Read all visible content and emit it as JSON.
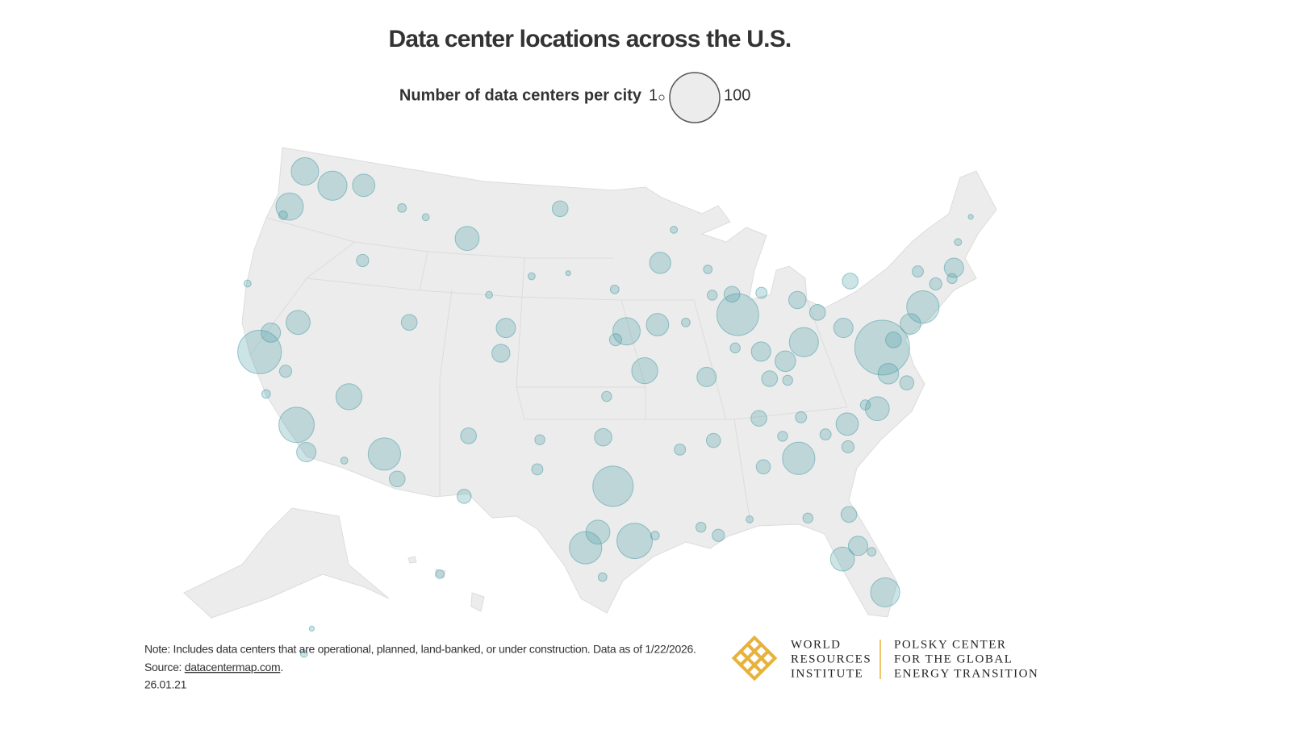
{
  "chart_data": {
    "type": "bubble_map",
    "title": "Data center locations across the U.S.",
    "size_legend": {
      "label": "Number of data centers per city",
      "min": 1,
      "max": 100
    },
    "color": "#4a9ea6",
    "points": [
      {
        "lon": -77.5,
        "lat": 39.0,
        "value": 120
      },
      {
        "lon": -96.8,
        "lat": 32.8,
        "value": 65
      },
      {
        "lon": -112.07,
        "lat": 33.45,
        "value": 42
      },
      {
        "lon": -87.6,
        "lat": 41.9,
        "value": 70
      },
      {
        "lon": -84.4,
        "lat": 33.75,
        "value": 42
      },
      {
        "lon": -121.9,
        "lat": 37.4,
        "value": 76
      },
      {
        "lon": -118.2,
        "lat": 34.05,
        "value": 50
      },
      {
        "lon": -74.0,
        "lat": 40.7,
        "value": 42
      },
      {
        "lon": -95.4,
        "lat": 29.8,
        "value": 50
      },
      {
        "lon": -98.5,
        "lat": 29.4,
        "value": 42
      },
      {
        "lon": -83.0,
        "lat": 40.0,
        "value": 34
      },
      {
        "lon": -122.3,
        "lat": 47.6,
        "value": 30
      },
      {
        "lon": -122.7,
        "lat": 45.5,
        "value": 30
      },
      {
        "lon": -119.85,
        "lat": 47.23,
        "value": 34
      },
      {
        "lon": -111.9,
        "lat": 40.76,
        "value": 10
      },
      {
        "lon": -104.99,
        "lat": 39.74,
        "value": 13
      },
      {
        "lon": -95.9,
        "lat": 41.26,
        "value": 30
      },
      {
        "lon": -93.6,
        "lat": 41.6,
        "value": 20
      },
      {
        "lon": -94.6,
        "lat": 39.1,
        "value": 27
      },
      {
        "lon": -93.27,
        "lat": 44.98,
        "value": 18
      },
      {
        "lon": -80.84,
        "lat": 35.23,
        "value": 20
      },
      {
        "lon": -71.06,
        "lat": 42.36,
        "value": 15
      },
      {
        "lon": -75.16,
        "lat": 39.95,
        "value": 17
      },
      {
        "lon": -119.8,
        "lat": 39.5,
        "value": 23
      },
      {
        "lon": -115.14,
        "lat": 36.17,
        "value": 27
      },
      {
        "lon": -121.5,
        "lat": 38.58,
        "value": 15
      },
      {
        "lon": -117.16,
        "lat": 32.72,
        "value": 15
      },
      {
        "lon": -80.19,
        "lat": 25.76,
        "value": 34
      },
      {
        "lon": -82.46,
        "lat": 27.95,
        "value": 23
      },
      {
        "lon": -81.38,
        "lat": 28.54,
        "value": 15
      },
      {
        "lon": -81.65,
        "lat": 30.33,
        "value": 10
      },
      {
        "lon": -86.78,
        "lat": 36.16,
        "value": 10
      },
      {
        "lon": -90.2,
        "lat": 38.63,
        "value": 15
      },
      {
        "lon": -86.16,
        "lat": 39.77,
        "value": 15
      },
      {
        "lon": -83.05,
        "lat": 42.33,
        "value": 12
      },
      {
        "lon": -80.0,
        "lat": 40.44,
        "value": 15
      },
      {
        "lon": -81.7,
        "lat": 41.5,
        "value": 10
      },
      {
        "lon": -78.9,
        "lat": 42.9,
        "value": 10
      },
      {
        "lon": -97.74,
        "lat": 30.27,
        "value": 23
      },
      {
        "lon": -97.5,
        "lat": 35.47,
        "value": 12
      },
      {
        "lon": -106.65,
        "lat": 35.08,
        "value": 10
      },
      {
        "lon": -106.49,
        "lat": 31.76,
        "value": 8
      },
      {
        "lon": -116.2,
        "lat": 43.6,
        "value": 6
      },
      {
        "lon": -117.4,
        "lat": 47.66,
        "value": 20
      },
      {
        "lon": -108.5,
        "lat": 45.78,
        "value": 23
      },
      {
        "lon": -104.8,
        "lat": 41.14,
        "value": 15
      },
      {
        "lon": -78.64,
        "lat": 35.78,
        "value": 23
      },
      {
        "lon": -77.43,
        "lat": 37.54,
        "value": 17
      },
      {
        "lon": -90.0,
        "lat": 35.15,
        "value": 8
      },
      {
        "lon": -90.07,
        "lat": 29.95,
        "value": 6
      },
      {
        "lon": -86.8,
        "lat": 33.5,
        "value": 8
      },
      {
        "lon": -87.9,
        "lat": 43.04,
        "value": 10
      },
      {
        "lon": -85.76,
        "lat": 38.25,
        "value": 10
      },
      {
        "lon": -84.5,
        "lat": 39.1,
        "value": 17
      },
      {
        "lon": -110.97,
        "lat": 32.22,
        "value": 10
      },
      {
        "lon": -119.8,
        "lat": 36.75,
        "value": 6
      },
      {
        "lon": -101.3,
        "lat": 47.9,
        "value": 10
      },
      {
        "lon": -81.03,
        "lat": 34.0,
        "value": 6
      },
      {
        "lon": -82.4,
        "lat": 34.85,
        "value": 5
      },
      {
        "lon": -96.7,
        "lat": 40.8,
        "value": 6
      },
      {
        "lon": -97.3,
        "lat": 37.7,
        "value": 4
      },
      {
        "lon": -92.3,
        "lat": 34.75,
        "value": 5
      },
      {
        "lon": -89.4,
        "lat": 43.07,
        "value": 4
      },
      {
        "lon": -73.76,
        "lat": 42.65,
        "value": 5
      },
      {
        "lon": -72.68,
        "lat": 41.76,
        "value": 6
      },
      {
        "lon": -76.6,
        "lat": 39.29,
        "value": 10
      },
      {
        "lon": -71.4,
        "lat": 41.82,
        "value": 4
      },
      {
        "lon": -70.25,
        "lat": 43.66,
        "value": 2
      },
      {
        "lon": -68.77,
        "lat": 44.8,
        "value": 1
      },
      {
        "lon": -103.2,
        "lat": 44.08,
        "value": 2
      },
      {
        "lon": -100.4,
        "lat": 44.37,
        "value": 1
      },
      {
        "lon": -96.8,
        "lat": 43.55,
        "value": 3
      },
      {
        "lon": -106.3,
        "lat": 42.85,
        "value": 2
      },
      {
        "lon": -112.0,
        "lat": 46.6,
        "value": 2
      },
      {
        "lon": -114.0,
        "lat": 46.87,
        "value": 3
      },
      {
        "lon": -123.0,
        "lat": 44.94,
        "value": 3
      },
      {
        "lon": -124.1,
        "lat": 40.8,
        "value": 2
      },
      {
        "lon": -120.7,
        "lat": 35.28,
        "value": 3
      },
      {
        "lon": -114.6,
        "lat": 32.7,
        "value": 2
      },
      {
        "lon": -101.85,
        "lat": 33.58,
        "value": 5
      },
      {
        "lon": -101.8,
        "lat": 35.2,
        "value": 4
      },
      {
        "lon": -97.4,
        "lat": 27.8,
        "value": 3
      },
      {
        "lon": -94.1,
        "lat": 30.08,
        "value": 3
      },
      {
        "lon": -91.15,
        "lat": 30.45,
        "value": 4
      },
      {
        "lon": -88.0,
        "lat": 30.7,
        "value": 2
      },
      {
        "lon": -84.28,
        "lat": 30.44,
        "value": 4
      },
      {
        "lon": -80.6,
        "lat": 28.1,
        "value": 3
      },
      {
        "lon": -85.3,
        "lat": 35.05,
        "value": 4
      },
      {
        "lon": -83.9,
        "lat": 35.96,
        "value": 5
      },
      {
        "lon": -79.4,
        "lat": 36.1,
        "value": 4
      },
      {
        "lon": -76.3,
        "lat": 36.85,
        "value": 8
      },
      {
        "lon": -84.5,
        "lat": 38.05,
        "value": 4
      },
      {
        "lon": -85.67,
        "lat": 42.96,
        "value": 5
      },
      {
        "lon": -88.0,
        "lat": 40.1,
        "value": 4
      },
      {
        "lon": -91.5,
        "lat": 41.66,
        "value": 3
      },
      {
        "lon": -92.1,
        "lat": 46.78,
        "value": 2
      },
      {
        "lon": -89.6,
        "lat": 44.5,
        "value": 3
      },
      {
        "lon": -157.86,
        "lat": 21.3,
        "value": 3
      },
      {
        "lon": -149.9,
        "lat": 61.2,
        "value": 2
      },
      {
        "lon": -147.7,
        "lat": 64.84,
        "value": 1
      }
    ]
  },
  "footer": {
    "note": "Note: Includes data centers that are operational, planned, land-banked, or under construction. Data as of 1/22/2026.",
    "source_label": "Source: ",
    "source_link": "datacentermap.com",
    "source_end": ".",
    "date": "26.01.21",
    "logo_wri": [
      "WORLD",
      "RESOURCES",
      "INSTITUTE"
    ],
    "logo_polsky": [
      "POLSKY CENTER",
      "FOR THE GLOBAL",
      "ENERGY TRANSITION"
    ]
  }
}
